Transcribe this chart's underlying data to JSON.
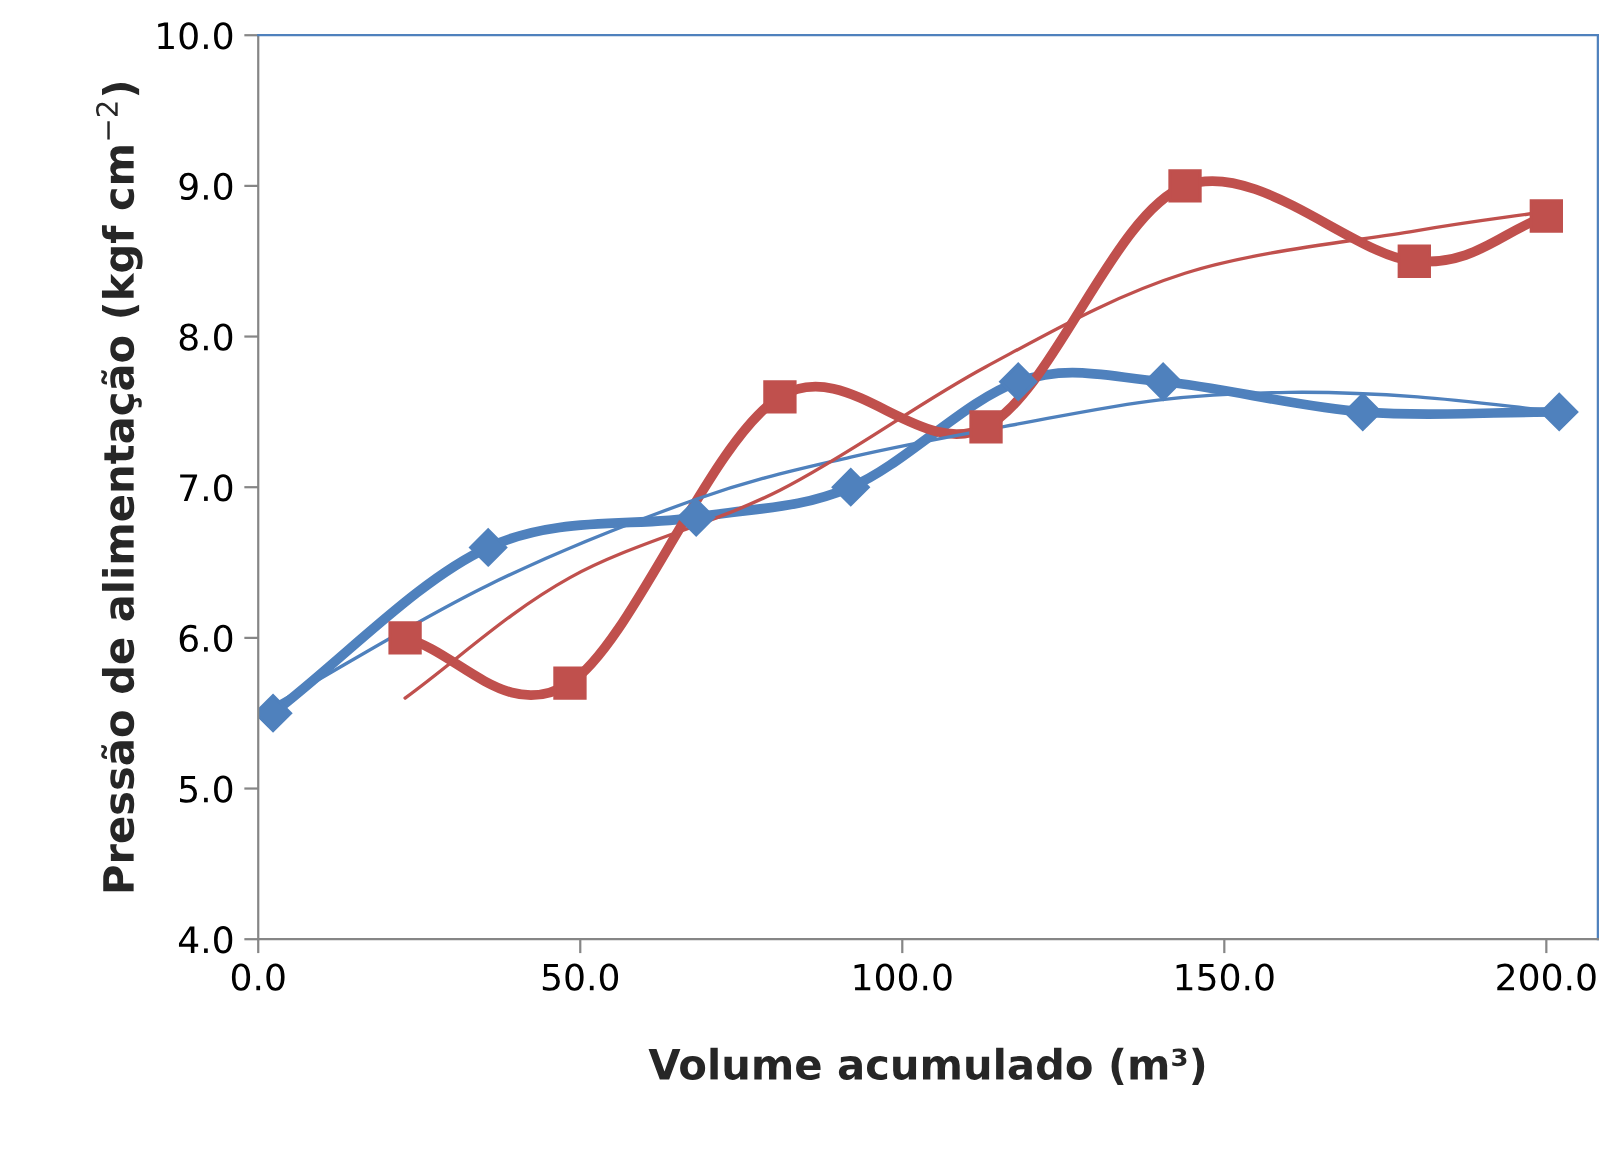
{
  "chart_data": {
    "type": "line",
    "xlabel": "Volume acumulado (m³)",
    "ylabel": "Pressão de alimentação (kgf cm$^{−2}$)",
    "xlim": [
      0,
      208
    ],
    "xticks": [
      {
        "value": 0,
        "label": "0.0"
      },
      {
        "value": 50,
        "label": "50.0"
      },
      {
        "value": 100,
        "label": "100.0"
      },
      {
        "value": 150,
        "label": "150.0"
      },
      {
        "value": 200,
        "label": "200.0"
      }
    ],
    "ylim": [
      4,
      10
    ],
    "yticks": [
      {
        "value": 4,
        "label": "4.0"
      },
      {
        "value": 5,
        "label": "5.0"
      },
      {
        "value": 6,
        "label": "6.0"
      },
      {
        "value": 7,
        "label": "7.0"
      },
      {
        "value": 8,
        "label": "8.0"
      },
      {
        "value": 9,
        "label": "9.0"
      },
      {
        "value": 10,
        "label": "10.0"
      }
    ],
    "grid": false,
    "legend": false,
    "line_style": "solid",
    "series": [
      {
        "color": "#4f81bd",
        "marker": "diamond",
        "x": [
          2.3,
          35.7,
          68,
          92,
          118,
          140.5,
          171.5,
          202
        ],
        "values": [
          5.5,
          6.6,
          6.8,
          7.0,
          7.7,
          7.7,
          7.5,
          7.5
        ]
      },
      {
        "color": "#c0504d",
        "marker": "square",
        "x": [
          22.8,
          48.4,
          81,
          113,
          143.9,
          179.5,
          200
        ],
        "values": [
          6.0,
          5.7,
          7.6,
          7.4,
          9.0,
          8.5,
          8.8
        ]
      },
      {
        "color": "#4f81bd",
        "marker": "none",
        "x": [
          2.3,
          35.7,
          68,
          92,
          118,
          140,
          160,
          180,
          202
        ],
        "values": [
          5.55,
          6.35,
          6.92,
          7.2,
          7.42,
          7.58,
          7.63,
          7.6,
          7.5
        ]
      },
      {
        "color": "#c0504d",
        "marker": "none",
        "x": [
          22.8,
          48.4,
          81,
          113,
          143.9,
          179.5,
          200
        ],
        "values": [
          5.6,
          6.4,
          6.98,
          7.8,
          8.42,
          8.7,
          8.83
        ]
      }
    ]
  }
}
